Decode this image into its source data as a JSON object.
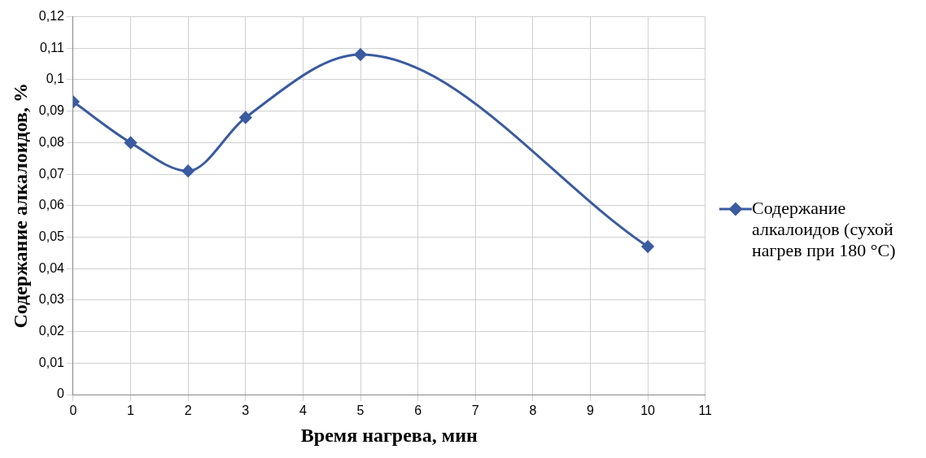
{
  "chart_data": {
    "type": "line",
    "xlabel": "Время нагрева, мин",
    "ylabel": "Содержание алкалоидов, %",
    "x": [
      0,
      1,
      2,
      3,
      5,
      10
    ],
    "series": [
      {
        "name": "Содержание алкалоидов (сухой нагрев при 180 °C)",
        "color": "#3a5ba0",
        "values": [
          0.093,
          0.08,
          0.071,
          0.088,
          0.108,
          0.047
        ]
      }
    ],
    "xlim": [
      0,
      11
    ],
    "xticks": [
      0,
      1,
      2,
      3,
      4,
      5,
      6,
      7,
      8,
      9,
      10,
      11
    ],
    "ylim": [
      0,
      0.12
    ],
    "yticks": [
      {
        "value": 0,
        "label": "0"
      },
      {
        "value": 0.01,
        "label": "0,01"
      },
      {
        "value": 0.02,
        "label": "0,02"
      },
      {
        "value": 0.03,
        "label": "0,03"
      },
      {
        "value": 0.04,
        "label": "0,04"
      },
      {
        "value": 0.05,
        "label": "0,05"
      },
      {
        "value": 0.06,
        "label": "0,06"
      },
      {
        "value": 0.07,
        "label": "0,07"
      },
      {
        "value": 0.08,
        "label": "0,08"
      },
      {
        "value": 0.09,
        "label": "0,09"
      },
      {
        "value": 0.1,
        "label": "0,1"
      },
      {
        "value": 0.11,
        "label": "0,11"
      },
      {
        "value": 0.12,
        "label": "0,12"
      }
    ],
    "grid": true,
    "legend": "right",
    "marker": "diamond",
    "line_style": "solid"
  }
}
